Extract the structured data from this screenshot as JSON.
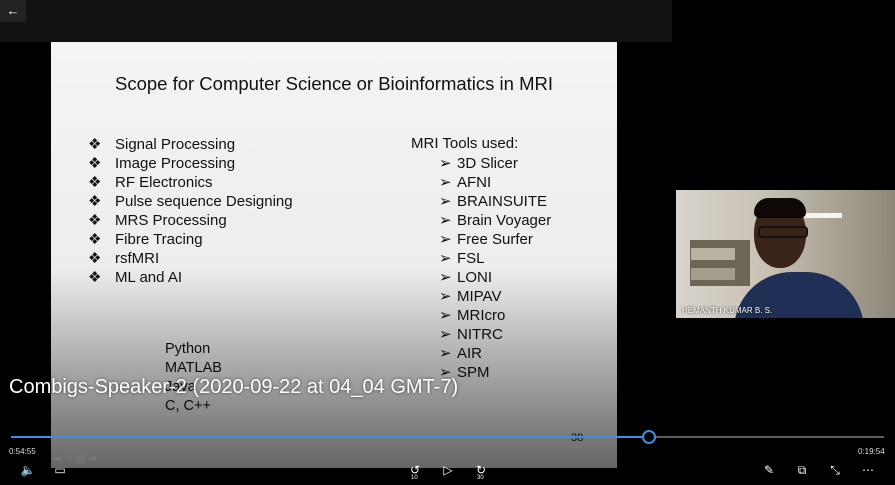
{
  "topbar": {
    "back_icon": "arrow-left-icon",
    "back_glyph": "←"
  },
  "slide": {
    "title": "Scope for Computer Science or Bioinformatics in MRI",
    "left_bullets": [
      "Signal Processing",
      "Image Processing",
      "RF Electronics",
      "Pulse sequence Designing",
      "MRS Processing",
      "Fibre Tracing",
      "rsfMRI",
      "ML and AI"
    ],
    "bullet_glyph": "❖",
    "tools_heading": "MRI Tools used:",
    "tools": [
      "3D Slicer",
      "AFNI",
      "BRAINSUITE",
      "Brain Voyager",
      "Free Surfer",
      "FSL",
      "LONI",
      "MIPAV",
      "MRIcro",
      "NITRC",
      "AIR",
      "SPM"
    ],
    "arrow_glyph": "➢",
    "languages": [
      "Python",
      "MATLAB",
      "Java",
      "C, C++"
    ],
    "page_number": "38"
  },
  "webcam": {
    "speaker_name": "HEMANTH KUMAR B. S."
  },
  "video": {
    "title": "Combigs-Speaker-2 (2020-09-22 at 04_04 GMT-7)",
    "current_time": "0:54:55",
    "duration": "0:19:54",
    "progress": 0.731,
    "skip_back": "10",
    "skip_forward": "30"
  },
  "controls": {
    "volume_icon": "volume-icon",
    "captions_icon": "captions-icon",
    "skip_back_icon": "rewind-10-icon",
    "play_icon": "play-icon",
    "skip_forward_icon": "forward-30-icon",
    "edit_icon": "pencil-icon",
    "miniview_icon": "mini-view-icon",
    "fullscreen_icon": "exit-fullscreen-icon",
    "more_icon": "more-icon"
  },
  "colors": {
    "accent": "#3f8ee0"
  }
}
